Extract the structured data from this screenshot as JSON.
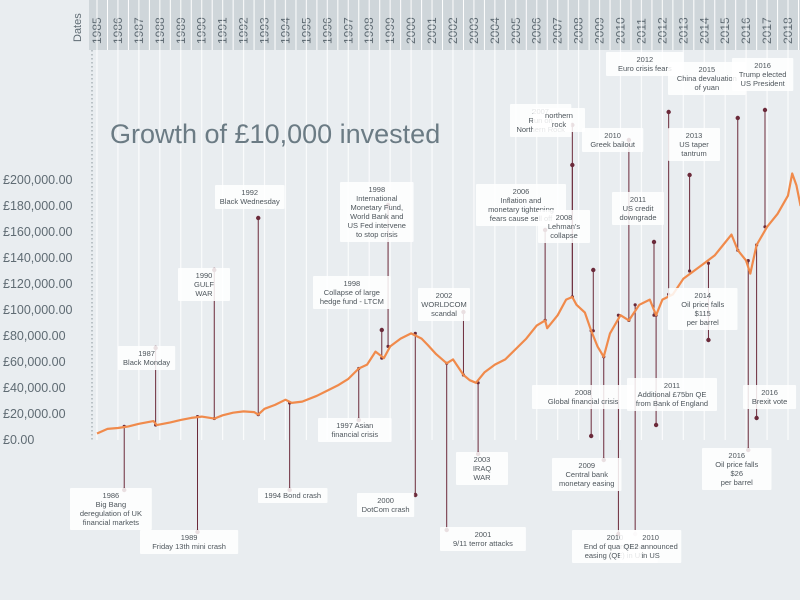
{
  "chart_data": {
    "type": "line",
    "title": "Growth of £10,000 invested",
    "xlabel": "Dates",
    "ylabel": "",
    "years": [
      "1985",
      "1986",
      "1987",
      "1988",
      "1989",
      "1990",
      "1991",
      "1992",
      "1993",
      "1994",
      "1995",
      "1996",
      "1997",
      "1998",
      "1999",
      "2000",
      "2001",
      "2002",
      "2003",
      "2004",
      "2005",
      "2006",
      "2007",
      "2008",
      "2009",
      "2010",
      "2011",
      "2012",
      "2013",
      "2014",
      "2015",
      "2016",
      "2017",
      "2018"
    ],
    "y_ticks": [
      "£0.00",
      "£20,000.00",
      "£40,000.00",
      "£60,000.00",
      "£80,000.00",
      "£100,000.00",
      "£120,000.00",
      "£140,000.00",
      "£160,000.00",
      "£180,000.00",
      "£200,000.00"
    ],
    "ylim": [
      0,
      200000
    ],
    "line_color": "#f08a4b",
    "series": [
      {
        "name": "",
        "points": [
          [
            1985.0,
            5000
          ],
          [
            1985.5,
            8500
          ],
          [
            1986.0,
            9200
          ],
          [
            1986.5,
            10500
          ],
          [
            1987.0,
            12500
          ],
          [
            1987.7,
            14500
          ],
          [
            1987.85,
            11500
          ],
          [
            1988.5,
            13500
          ],
          [
            1989.0,
            15500
          ],
          [
            1989.5,
            17000
          ],
          [
            1990.0,
            18000
          ],
          [
            1990.6,
            16500
          ],
          [
            1991.0,
            19000
          ],
          [
            1991.5,
            21000
          ],
          [
            1992.0,
            22000
          ],
          [
            1992.5,
            21500
          ],
          [
            1992.7,
            19500
          ],
          [
            1993.0,
            24000
          ],
          [
            1993.5,
            27000
          ],
          [
            1994.0,
            31000
          ],
          [
            1994.3,
            28500
          ],
          [
            1994.8,
            29500
          ],
          [
            1995.5,
            34000
          ],
          [
            1996.0,
            38000
          ],
          [
            1996.5,
            42000
          ],
          [
            1997.0,
            47000
          ],
          [
            1997.5,
            55000
          ],
          [
            1997.9,
            58000
          ],
          [
            1998.3,
            68000
          ],
          [
            1998.7,
            63000
          ],
          [
            1999.0,
            72000
          ],
          [
            1999.5,
            78000
          ],
          [
            2000.0,
            82000
          ],
          [
            2000.5,
            78000
          ],
          [
            2000.8,
            73000
          ],
          [
            2001.2,
            66000
          ],
          [
            2001.7,
            59000
          ],
          [
            2002.0,
            62000
          ],
          [
            2002.5,
            50000
          ],
          [
            2002.8,
            46000
          ],
          [
            2003.1,
            44000
          ],
          [
            2003.5,
            52000
          ],
          [
            2004.0,
            58000
          ],
          [
            2004.5,
            62000
          ],
          [
            2005.0,
            70000
          ],
          [
            2005.5,
            78000
          ],
          [
            2006.0,
            88000
          ],
          [
            2006.4,
            92000
          ],
          [
            2006.5,
            86000
          ],
          [
            2007.0,
            96000
          ],
          [
            2007.4,
            108000
          ],
          [
            2007.7,
            110000
          ],
          [
            2007.9,
            104000
          ],
          [
            2008.3,
            98000
          ],
          [
            2008.6,
            84000
          ],
          [
            2008.9,
            72000
          ],
          [
            2009.2,
            64000
          ],
          [
            2009.5,
            82000
          ],
          [
            2010.0,
            96000
          ],
          [
            2010.4,
            92000
          ],
          [
            2010.9,
            104000
          ],
          [
            2011.4,
            108000
          ],
          [
            2011.7,
            96000
          ],
          [
            2012.0,
            108000
          ],
          [
            2012.5,
            112000
          ],
          [
            2013.0,
            124000
          ],
          [
            2013.5,
            130000
          ],
          [
            2014.0,
            136000
          ],
          [
            2014.5,
            142000
          ],
          [
            2014.9,
            150000
          ],
          [
            2015.3,
            158000
          ],
          [
            2015.6,
            146000
          ],
          [
            2016.0,
            138000
          ],
          [
            2016.2,
            128000
          ],
          [
            2016.5,
            150000
          ],
          [
            2017.0,
            164000
          ],
          [
            2017.5,
            174000
          ],
          [
            2018.0,
            188000
          ],
          [
            2018.2,
            205000
          ],
          [
            2018.4,
            196000
          ],
          [
            2018.6,
            180000
          ]
        ]
      }
    ],
    "annotations": [
      {
        "lines": [
          "1986",
          "Big Bang",
          "deregulation of UK",
          "financial markets"
        ],
        "year": 1986.3
      },
      {
        "lines": [
          "1987",
          "Black Monday"
        ],
        "year": 1987.8
      },
      {
        "lines": [
          "1989",
          "Friday 13th mini crash"
        ],
        "year": 1989.8
      },
      {
        "lines": [
          "1990",
          "GULF",
          "WAR"
        ],
        "year": 1990.6
      },
      {
        "lines": [
          "1992",
          "Black Wednesday"
        ],
        "year": 1992.7
      },
      {
        "lines": [
          "1994 Bond crash"
        ],
        "year": 1994.2
      },
      {
        "lines": [
          "1997 Asian",
          "financial crisis"
        ],
        "year": 1997.5
      },
      {
        "lines": [
          "1998",
          "Collapse of large",
          "hedge fund - LTCM"
        ],
        "year": 1998.6
      },
      {
        "lines": [
          "1998",
          "International",
          "Monetary Fund,",
          "World Bank and",
          "US Fed intervene",
          "to stop crisis"
        ],
        "year": 1998.9
      },
      {
        "lines": [
          "2000",
          "DotCom crash"
        ],
        "year": 2000.2
      },
      {
        "lines": [
          "2001",
          "9/11 terror attacks"
        ],
        "year": 2001.7
      },
      {
        "lines": [
          "2002",
          "WORLDCOM",
          "scandal"
        ],
        "year": 2002.5
      },
      {
        "lines": [
          "2003",
          "IRAQ",
          "WAR"
        ],
        "year": 2003.2
      },
      {
        "lines": [
          "2006",
          "Inflation and",
          "monetary tightening",
          "fears cause sell off"
        ],
        "year": 2006.4
      },
      {
        "lines": [
          "2007",
          "Run on",
          "Northern Rock"
        ],
        "year": 2007.7
      },
      {
        "lines": [
          "northern",
          "rock"
        ],
        "year": 2007.7
      },
      {
        "lines": [
          "2008",
          "Lehman's",
          "collapse"
        ],
        "year": 2008.7
      },
      {
        "lines": [
          "2008",
          "Global financial crisis"
        ],
        "year": 2008.6
      },
      {
        "lines": [
          "2009",
          "Central bank",
          "monetary easing"
        ],
        "year": 2009.2
      },
      {
        "lines": [
          "2010",
          "Greek bailout"
        ],
        "year": 2010.4
      },
      {
        "lines": [
          "2010",
          "End of quantitative",
          "easing (QE) in US"
        ],
        "year": 2009.9
      },
      {
        "lines": [
          "2010",
          "QE2 announced",
          "in US"
        ],
        "year": 2010.7
      },
      {
        "lines": [
          "2011",
          "US credit",
          "downgrade"
        ],
        "year": 2011.6
      },
      {
        "lines": [
          "2011",
          "Additional £75bn QE",
          "from Bank of England"
        ],
        "year": 2011.7
      },
      {
        "lines": [
          "2012",
          "Euro crisis fears"
        ],
        "year": 2012.3
      },
      {
        "lines": [
          "2013",
          "US taper",
          "tantrum"
        ],
        "year": 2013.3
      },
      {
        "lines": [
          "2014",
          "Oil price falls",
          "$115",
          "per barrel"
        ],
        "year": 2014.2
      },
      {
        "lines": [
          "2015",
          "China devaluation",
          "of yuan"
        ],
        "year": 2015.6
      },
      {
        "lines": [
          "2016",
          "Oil price falls",
          "$26",
          "per barrel"
        ],
        "year": 2016.1
      },
      {
        "lines": [
          "2016",
          "Brexit vote"
        ],
        "year": 2016.5
      },
      {
        "lines": [
          "2016",
          "Trump elected",
          "US President"
        ],
        "year": 2016.9
      }
    ]
  }
}
